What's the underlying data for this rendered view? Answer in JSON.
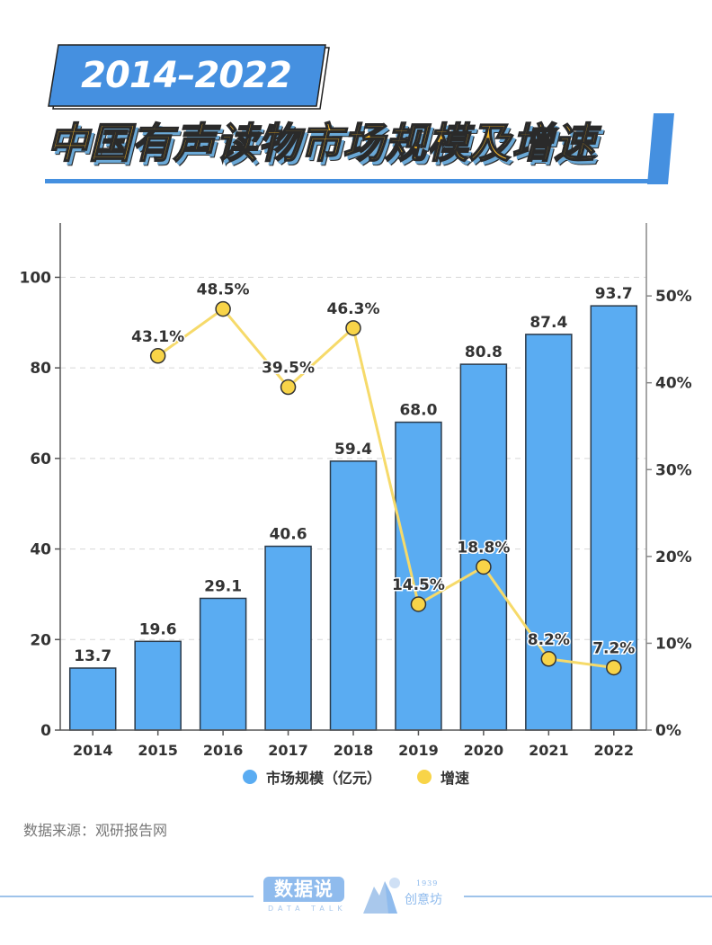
{
  "header": {
    "year_range": "2014–2022",
    "title": "中国有声读物市场规模及增速"
  },
  "colors": {
    "bar": "#5aacf2",
    "bar_stroke": "#2b3a4a",
    "line": "#f6da6a",
    "dot": "#f8d448",
    "header_blue": "#4590e0",
    "title_yellow": "#f7b929"
  },
  "chart_data": {
    "type": "bar",
    "title": "中国有声读物市场规模及增速",
    "categories": [
      "2014",
      "2015",
      "2016",
      "2017",
      "2018",
      "2019",
      "2020",
      "2021",
      "2022"
    ],
    "series": [
      {
        "name": "市场规模（亿元）",
        "type": "bar",
        "axis": "left",
        "values": [
          13.7,
          19.6,
          29.1,
          40.6,
          59.4,
          68.0,
          80.8,
          87.4,
          93.7
        ],
        "labels": [
          "13.7",
          "19.6",
          "29.1",
          "40.6",
          "59.4",
          "68.0",
          "80.8",
          "87.4",
          "93.7"
        ]
      },
      {
        "name": "增速",
        "type": "line",
        "axis": "right",
        "values": [
          null,
          43.1,
          48.5,
          39.5,
          46.3,
          14.5,
          18.8,
          8.2,
          7.2
        ],
        "labels": [
          "",
          "43.1%",
          "48.5%",
          "39.5%",
          "46.3%",
          "14.5%",
          "18.8%",
          "8.2%",
          "7.2%"
        ]
      }
    ],
    "y_left": {
      "ylim": [
        0,
        112
      ],
      "ticks": [
        0,
        20,
        40,
        60,
        80,
        100
      ],
      "tick_labels": [
        "0",
        "20",
        "40",
        "60",
        "80",
        "100"
      ]
    },
    "y_right": {
      "ylim": [
        0,
        58.4
      ],
      "ticks": [
        0,
        10,
        20,
        30,
        40,
        50
      ],
      "tick_labels": [
        "0%",
        "10%",
        "20%",
        "30%",
        "40%",
        "50%"
      ]
    },
    "grid": true,
    "legend": "bottom"
  },
  "legend": {
    "items": [
      {
        "label": "市场规模（亿元）",
        "color": "#5aacf2"
      },
      {
        "label": "增速",
        "color": "#f8d448"
      }
    ]
  },
  "footer": {
    "source": "数据来源：观研报告网",
    "logo_main": "数据说",
    "logo_sub": "DATA TALK",
    "logo2_year": "1939",
    "logo2_name": "创意坊"
  }
}
